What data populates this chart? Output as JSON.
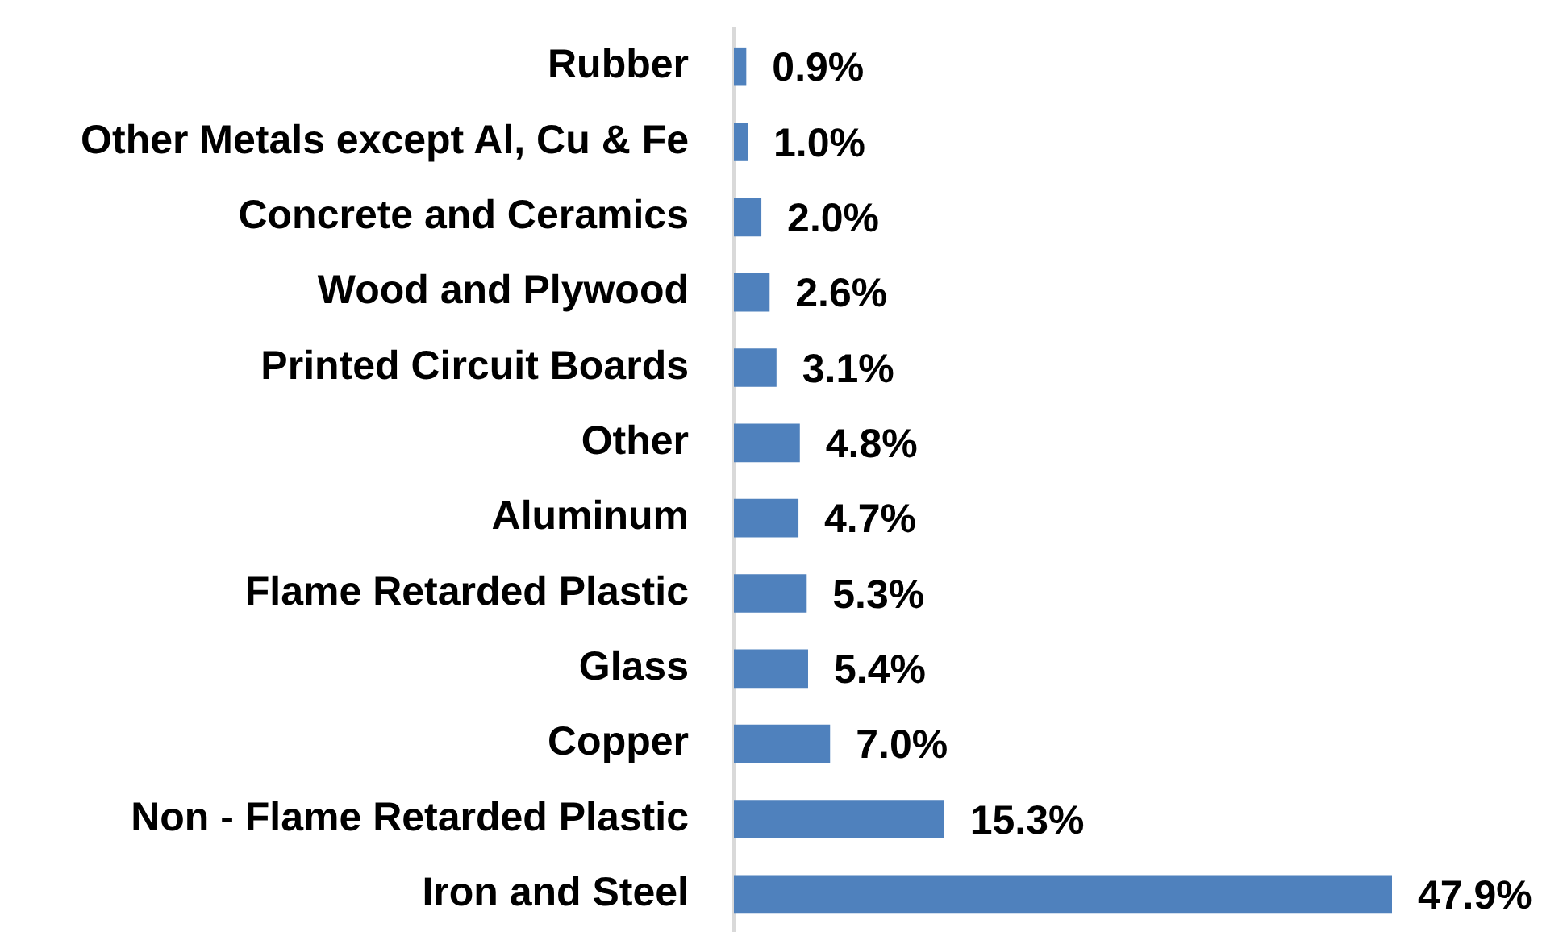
{
  "chart_data": {
    "type": "bar",
    "orientation": "horizontal",
    "categories": [
      "Rubber",
      "Other Metals except Al, Cu & Fe",
      "Concrete and Ceramics",
      "Wood and Plywood",
      "Printed Circuit Boards",
      "Other",
      "Aluminum",
      "Flame Retarded Plastic",
      "Glass",
      "Copper",
      "Non - Flame Retarded Plastic",
      "Iron and Steel"
    ],
    "values": [
      0.9,
      1.0,
      2.0,
      2.6,
      3.1,
      4.8,
      4.7,
      5.3,
      5.4,
      7.0,
      15.3,
      47.9
    ],
    "color": "#4f81bd",
    "value_labels": [
      "0.9%",
      "1.0%",
      "2.0%",
      "2.6%",
      "3.1%",
      "4.8%",
      "4.7%",
      "5.3%",
      "5.4%",
      "7.0%",
      "15.3%",
      "47.9%"
    ]
  }
}
